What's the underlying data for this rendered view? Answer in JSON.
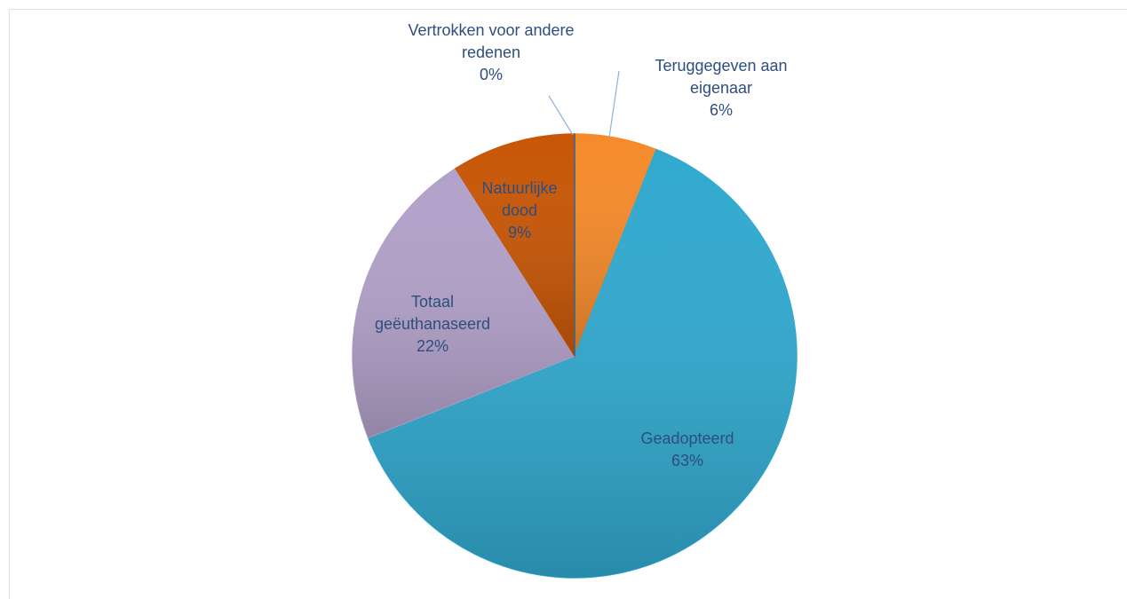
{
  "chart_data": {
    "type": "pie",
    "categories": [
      "Teruggegeven aan eigenaar",
      "Geadopteerd",
      "Totaal geëuthanaseerd",
      "Natuurlijke dood",
      "Vertrokken voor andere redenen"
    ],
    "values": [
      6,
      63,
      22,
      9,
      0
    ],
    "value_labels": [
      "6%",
      "63%",
      "22%",
      "9%",
      "0%"
    ],
    "colors": [
      "#f58a2a",
      "#31a9cf",
      "#b2a1c9",
      "#c85606",
      "#2b6a9a"
    ]
  }
}
